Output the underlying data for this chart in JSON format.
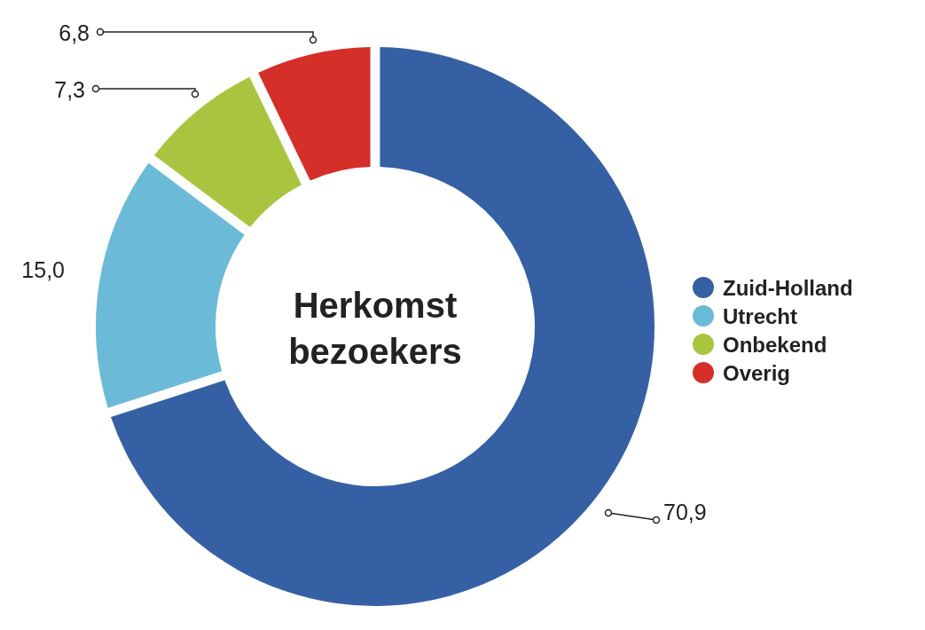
{
  "chart_data": {
    "type": "donut",
    "title": "Herkomst bezoekers",
    "categories": [
      "Zuid-Holland",
      "Utrecht",
      "Onbekend",
      "Overig"
    ],
    "values": [
      70.9,
      15.0,
      7.3,
      6.8
    ],
    "colors": [
      "#3560a4",
      "#6bbad8",
      "#a9c53f",
      "#d52f2a"
    ],
    "value_labels": [
      "70,9",
      "15,0",
      "7,3",
      "6,8"
    ],
    "legend": "right"
  }
}
